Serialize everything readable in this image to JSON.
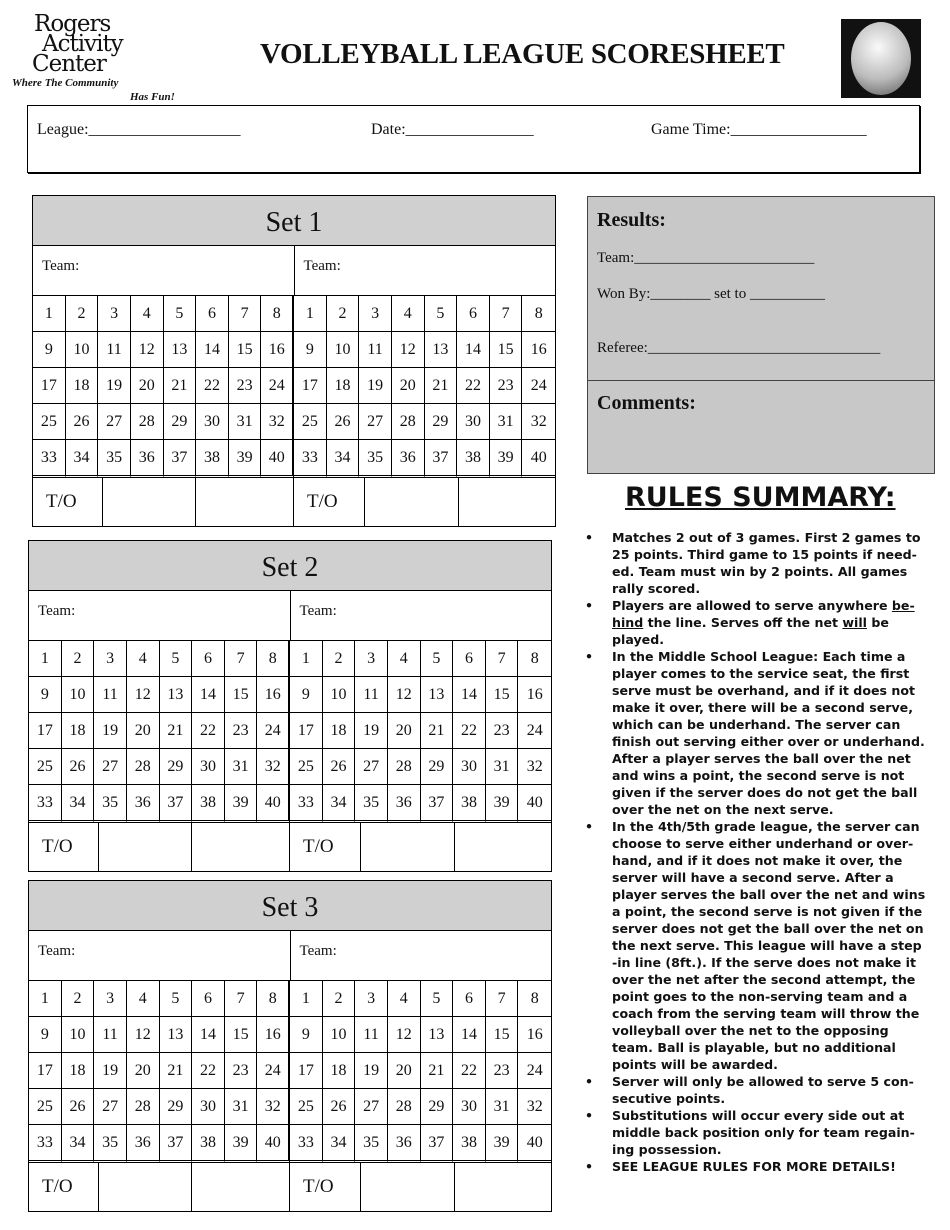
{
  "logo": {
    "line1": "Rogers",
    "line2": "Activity",
    "line3": "Center",
    "tag1": "Where The Community",
    "tag2": "Has Fun!"
  },
  "title": "VOLLEYBALL LEAGUE SCORESHEET",
  "ball_icon": "volleyball-photo",
  "info": {
    "league": "League:___________________",
    "date": "Date:________________",
    "game_time": "Game Time:_________________"
  },
  "sets": [
    {
      "title": "Set 1",
      "team_a": "Team:",
      "team_b": "Team:",
      "to_a": "T/O",
      "to_b": "T/O"
    },
    {
      "title": "Set 2",
      "team_a": "Team:",
      "team_b": "Team:",
      "to_a": "T/O",
      "to_b": "T/O"
    },
    {
      "title": "Set 3",
      "team_a": "Team:",
      "team_b": "Team:",
      "to_a": "T/O",
      "to_b": "T/O"
    }
  ],
  "points_rows": [
    [
      1,
      2,
      3,
      4,
      5,
      6,
      7,
      8
    ],
    [
      9,
      10,
      11,
      12,
      13,
      14,
      15,
      16
    ],
    [
      17,
      18,
      19,
      20,
      21,
      22,
      23,
      24
    ],
    [
      25,
      26,
      27,
      28,
      29,
      30,
      31,
      32
    ],
    [
      33,
      34,
      35,
      36,
      37,
      38,
      39,
      40
    ]
  ],
  "results": {
    "title": "Results:",
    "team": "Team:________________________",
    "won_by": "Won By:________ set to __________",
    "referee": "Referee:_______________________________",
    "comments": "Comments:"
  },
  "rules": {
    "title": "RULES SUMMARY:",
    "items": [
      "Matches 2 out of 3 games.  First 2 games to\n25 points.  Third game to 15 points if need-\ned.  Team must win by 2 points.  All games\nrally scored.",
      {
        "a": "Players are allowed to serve anywhere ",
        "u1": "be-\nhind",
        "b": " the line.  Serves off the net ",
        "u2": "will",
        "c": " be\nplayed."
      },
      "In the Middle School League:  Each time a\nplayer comes to the service seat, the first\nserve must be overhand, and if it does not\nmake it over, there will be a second serve,\nwhich can be underhand.  The server can\nfinish out serving either over or underhand.\nAfter a player serves the ball over the net\nand wins a point, the second serve is not\ngiven if the server does do not get the ball\nover the net on the next serve.",
      "In the 4th/5th grade league, the server can\nchoose to serve either underhand or over-\nhand, and if it does not make it over, the\nserver will have a second serve.  After a\nplayer serves the ball over the net and wins\na point, the second serve is not given if the\nserver does not get the ball over the net on\nthe next serve.  This league will have a step\n-in line (8ft.).  If the serve does not make it\nover the net after the second attempt, the\npoint goes to the non-serving team and a\ncoach from the serving team will throw the\nvolleyball over the net to the opposing\nteam.  Ball is playable, but no additional\npoints will be awarded.",
      "Server will only be allowed to serve 5 con-\nsecutive points.",
      "Substitutions will occur every side out at\nmiddle back position only for team regain-\ning possession.",
      "SEE LEAGUE RULES FOR MORE DETAILS!"
    ]
  }
}
